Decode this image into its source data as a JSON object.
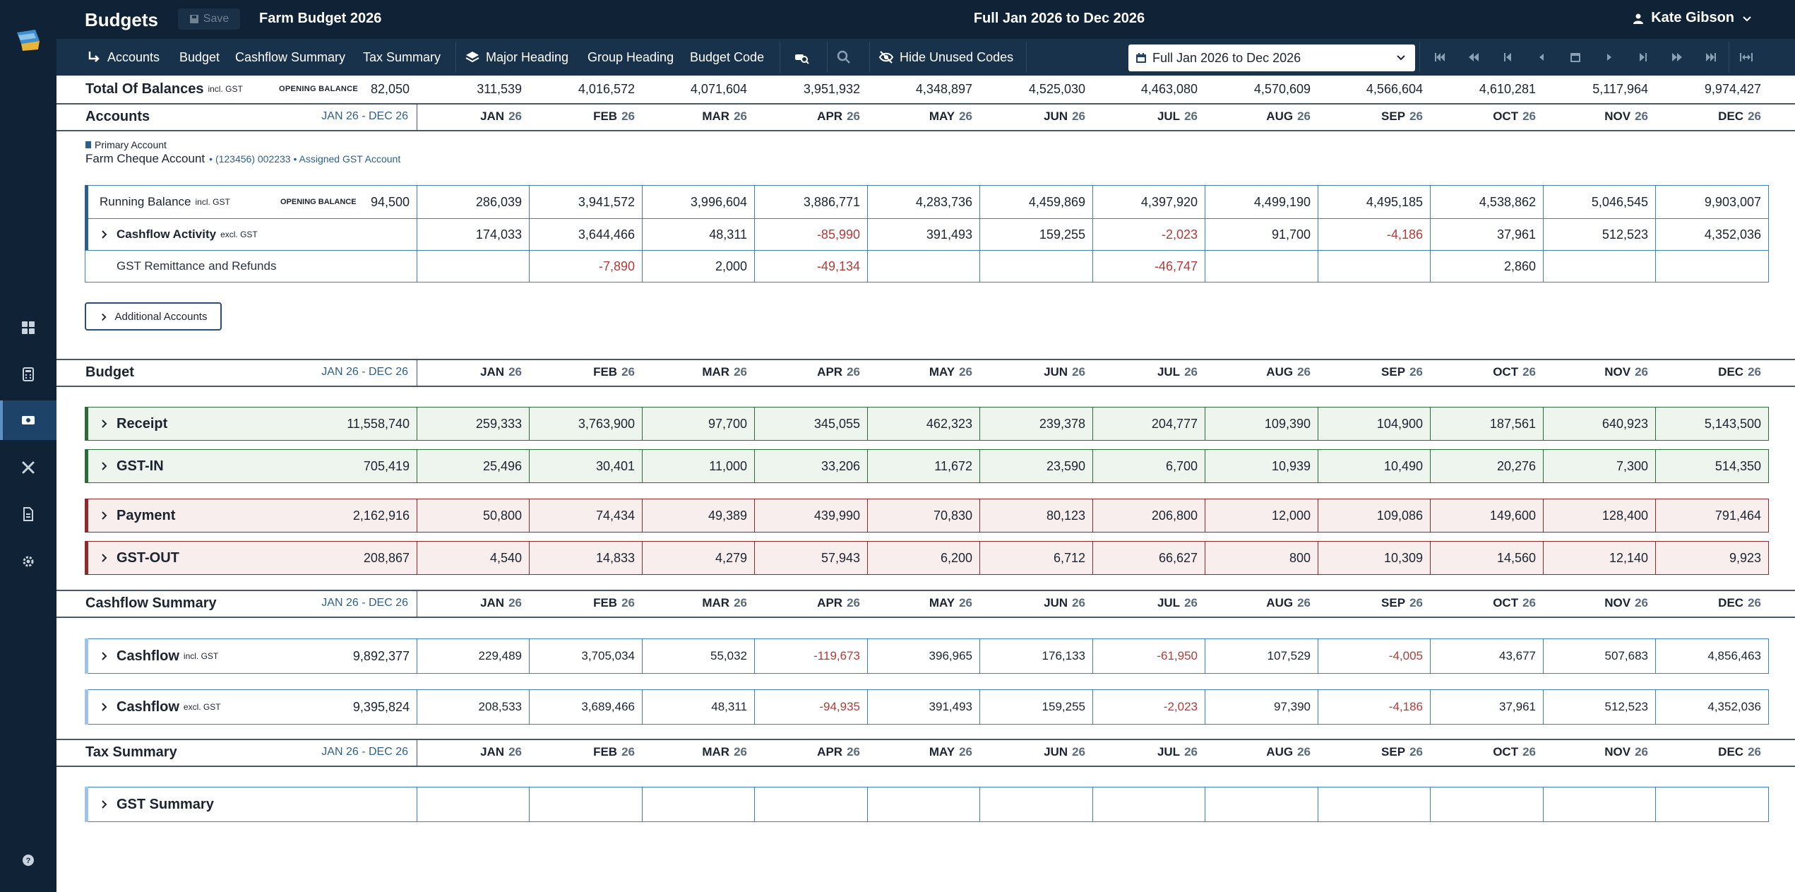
{
  "topbar": {
    "app_title": "Budgets",
    "save_label": "Save",
    "budget_name": "Farm Budget 2026",
    "period_title": "Full Jan 2026 to Dec 2026",
    "user_name": "Kate Gibson"
  },
  "toolbar": {
    "accounts": "Accounts",
    "budget": "Budget",
    "cashflow_summary": "Cashflow Summary",
    "tax_summary": "Tax Summary",
    "major_heading": "Major Heading",
    "group_heading": "Group Heading",
    "budget_code": "Budget Code",
    "hide_unused": "Hide Unused Codes",
    "period_select": "Full Jan 2026 to Dec 2026"
  },
  "months": [
    {
      "m": "JAN",
      "y": "26"
    },
    {
      "m": "FEB",
      "y": "26"
    },
    {
      "m": "MAR",
      "y": "26"
    },
    {
      "m": "APR",
      "y": "26"
    },
    {
      "m": "MAY",
      "y": "26"
    },
    {
      "m": "JUN",
      "y": "26"
    },
    {
      "m": "JUL",
      "y": "26"
    },
    {
      "m": "AUG",
      "y": "26"
    },
    {
      "m": "SEP",
      "y": "26"
    },
    {
      "m": "OCT",
      "y": "26"
    },
    {
      "m": "NOV",
      "y": "26"
    },
    {
      "m": "DEC",
      "y": "26"
    }
  ],
  "total_balances": {
    "label": "Total Of Balances",
    "suffix": "incl. GST",
    "opening_label": "OPENING BALANCE",
    "opening_value": "82,050",
    "values": [
      "311,539",
      "4,016,572",
      "4,071,604",
      "3,951,932",
      "4,348,897",
      "4,525,030",
      "4,463,080",
      "4,570,609",
      "4,566,604",
      "4,610,281",
      "5,117,964",
      "9,974,427"
    ]
  },
  "accounts_section": {
    "title": "Accounts",
    "range": "JAN 26 - DEC 26",
    "primary_badge": "Primary Account",
    "account_name": "Farm Cheque Account",
    "account_detail": "• (123456) 002233 • Assigned GST Account",
    "running_balance": {
      "label": "Running Balance",
      "suffix": "incl. GST",
      "opening_label": "OPENING BALANCE",
      "opening_value": "94,500",
      "values": [
        "286,039",
        "3,941,572",
        "3,996,604",
        "3,886,771",
        "4,283,736",
        "4,459,869",
        "4,397,920",
        "4,499,190",
        "4,495,185",
        "4,538,862",
        "5,046,545",
        "9,903,007"
      ]
    },
    "cashflow_activity": {
      "label": "Cashflow Activity",
      "suffix": "excl. GST",
      "values": [
        "174,033",
        "3,644,466",
        "48,311",
        "-85,990",
        "391,493",
        "159,255",
        "-2,023",
        "91,700",
        "-4,186",
        "37,961",
        "512,523",
        "4,352,036"
      ]
    },
    "gst_remittance": {
      "label": "GST Remittance and Refunds",
      "values": [
        "",
        "-7,890",
        "2,000",
        "-49,134",
        "",
        "",
        "-46,747",
        "",
        "",
        "2,860",
        "",
        ""
      ]
    },
    "additional_accounts": "Additional Accounts"
  },
  "budget_section": {
    "title": "Budget",
    "range": "JAN 26 - DEC 26",
    "receipt": {
      "label": "Receipt",
      "total": "11,558,740",
      "values": [
        "259,333",
        "3,763,900",
        "97,700",
        "345,055",
        "462,323",
        "239,378",
        "204,777",
        "109,390",
        "104,900",
        "187,561",
        "640,923",
        "5,143,500"
      ]
    },
    "gst_in": {
      "label": "GST-IN",
      "total": "705,419",
      "values": [
        "25,496",
        "30,401",
        "11,000",
        "33,206",
        "11,672",
        "23,590",
        "6,700",
        "10,939",
        "10,490",
        "20,276",
        "7,300",
        "514,350"
      ]
    },
    "payment": {
      "label": "Payment",
      "total": "2,162,916",
      "values": [
        "50,800",
        "74,434",
        "49,389",
        "439,990",
        "70,830",
        "80,123",
        "206,800",
        "12,000",
        "109,086",
        "149,600",
        "128,400",
        "791,464"
      ]
    },
    "gst_out": {
      "label": "GST-OUT",
      "total": "208,867",
      "values": [
        "4,540",
        "14,833",
        "4,279",
        "57,943",
        "6,200",
        "6,712",
        "66,627",
        "800",
        "10,309",
        "14,560",
        "12,140",
        "9,923"
      ]
    }
  },
  "cashflow_section": {
    "title": "Cashflow Summary",
    "range": "JAN 26 - DEC 26",
    "incl": {
      "label": "Cashflow",
      "suffix": "incl. GST",
      "total": "9,892,377",
      "values": [
        "229,489",
        "3,705,034",
        "55,032",
        "-119,673",
        "396,965",
        "176,133",
        "-61,950",
        "107,529",
        "-4,005",
        "43,677",
        "507,683",
        "4,856,463"
      ]
    },
    "excl": {
      "label": "Cashflow",
      "suffix": "excl. GST",
      "total": "9,395,824",
      "values": [
        "208,533",
        "3,689,466",
        "48,311",
        "-94,935",
        "391,493",
        "159,255",
        "-2,023",
        "97,390",
        "-4,186",
        "37,961",
        "512,523",
        "4,352,036"
      ]
    }
  },
  "tax_section": {
    "title": "Tax Summary",
    "range": "JAN 26 - DEC 26",
    "gst_summary": "GST Summary"
  },
  "colors": {
    "navy": "#0f2236",
    "toolbar": "#18324c",
    "receipt_bg": "#eef5ee",
    "receipt_accent": "#2f6b3a",
    "payment_bg": "#f8eeee",
    "payment_accent": "#8a2a2a",
    "band_border": "#3f80b6",
    "negative": "#b33a3a"
  }
}
